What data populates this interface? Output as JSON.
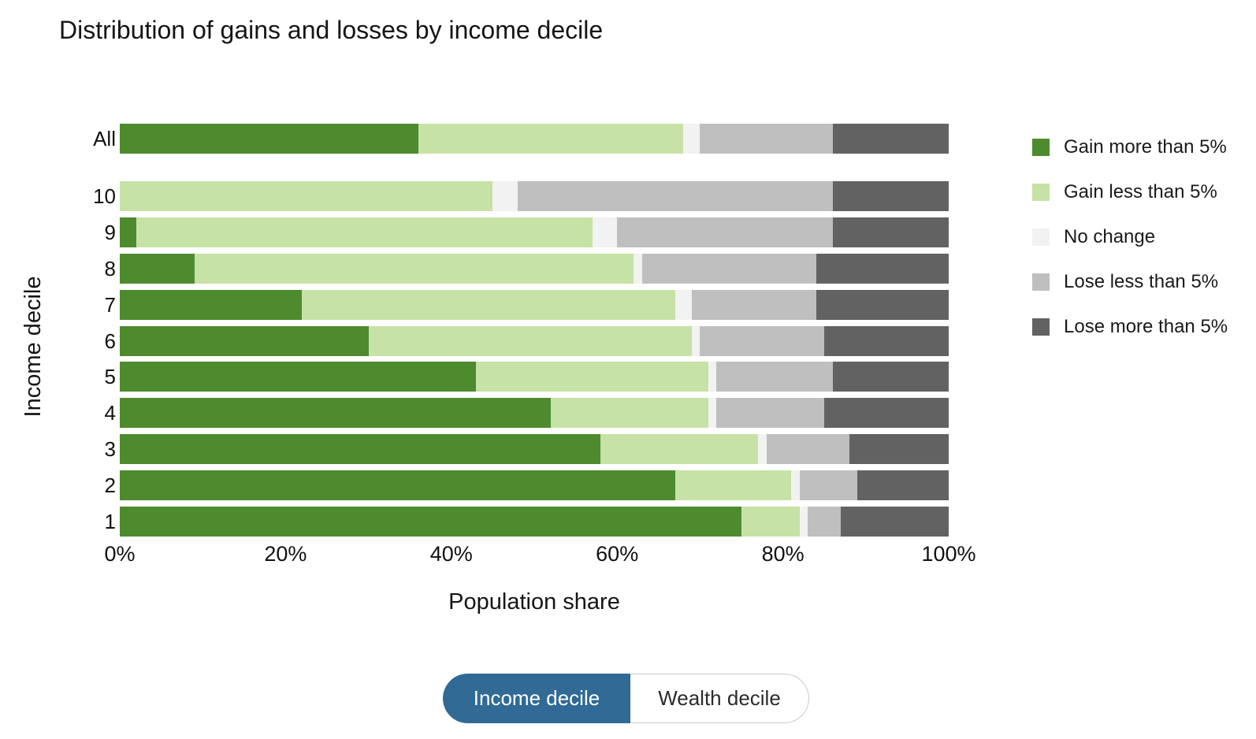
{
  "title": "Distribution of gains and losses by income decile",
  "chart_data": {
    "type": "bar",
    "orientation": "horizontal",
    "stacked": true,
    "title": "Distribution of gains and losses by income decile",
    "xlabel": "Population share",
    "ylabel": "Income decile",
    "xlim": [
      0,
      100
    ],
    "grid": false,
    "legend_position": "right",
    "x_tick_labels": [
      "0%",
      "20%",
      "40%",
      "60%",
      "80%",
      "100%"
    ],
    "x_tick_values": [
      0,
      20,
      40,
      60,
      80,
      100
    ],
    "categories": [
      "All",
      "10",
      "9",
      "8",
      "7",
      "6",
      "5",
      "4",
      "3",
      "2",
      "1"
    ],
    "series": [
      {
        "name": "Gain more than 5%",
        "color": "#4e8b2e",
        "values": [
          36,
          0,
          2,
          9,
          22,
          30,
          43,
          52,
          58,
          67,
          75
        ]
      },
      {
        "name": "Gain less than 5%",
        "color": "#c7e2a6",
        "values": [
          32,
          45,
          55,
          53,
          45,
          39,
          28,
          19,
          19,
          14,
          7
        ]
      },
      {
        "name": "No change",
        "color": "#f2f2f2",
        "values": [
          2,
          3,
          3,
          1,
          2,
          1,
          1,
          1,
          1,
          1,
          1
        ]
      },
      {
        "name": "Lose less than 5%",
        "color": "#bfbfbf",
        "values": [
          16,
          38,
          26,
          21,
          15,
          15,
          14,
          13,
          10,
          7,
          4
        ]
      },
      {
        "name": "Lose more than 5%",
        "color": "#626262",
        "values": [
          14,
          14,
          14,
          16,
          16,
          15,
          14,
          15,
          12,
          11,
          13
        ]
      }
    ]
  },
  "toggle": {
    "selected_color": "#306a95",
    "options": [
      {
        "label": "Income decile",
        "selected": true
      },
      {
        "label": "Wealth decile",
        "selected": false
      }
    ]
  }
}
